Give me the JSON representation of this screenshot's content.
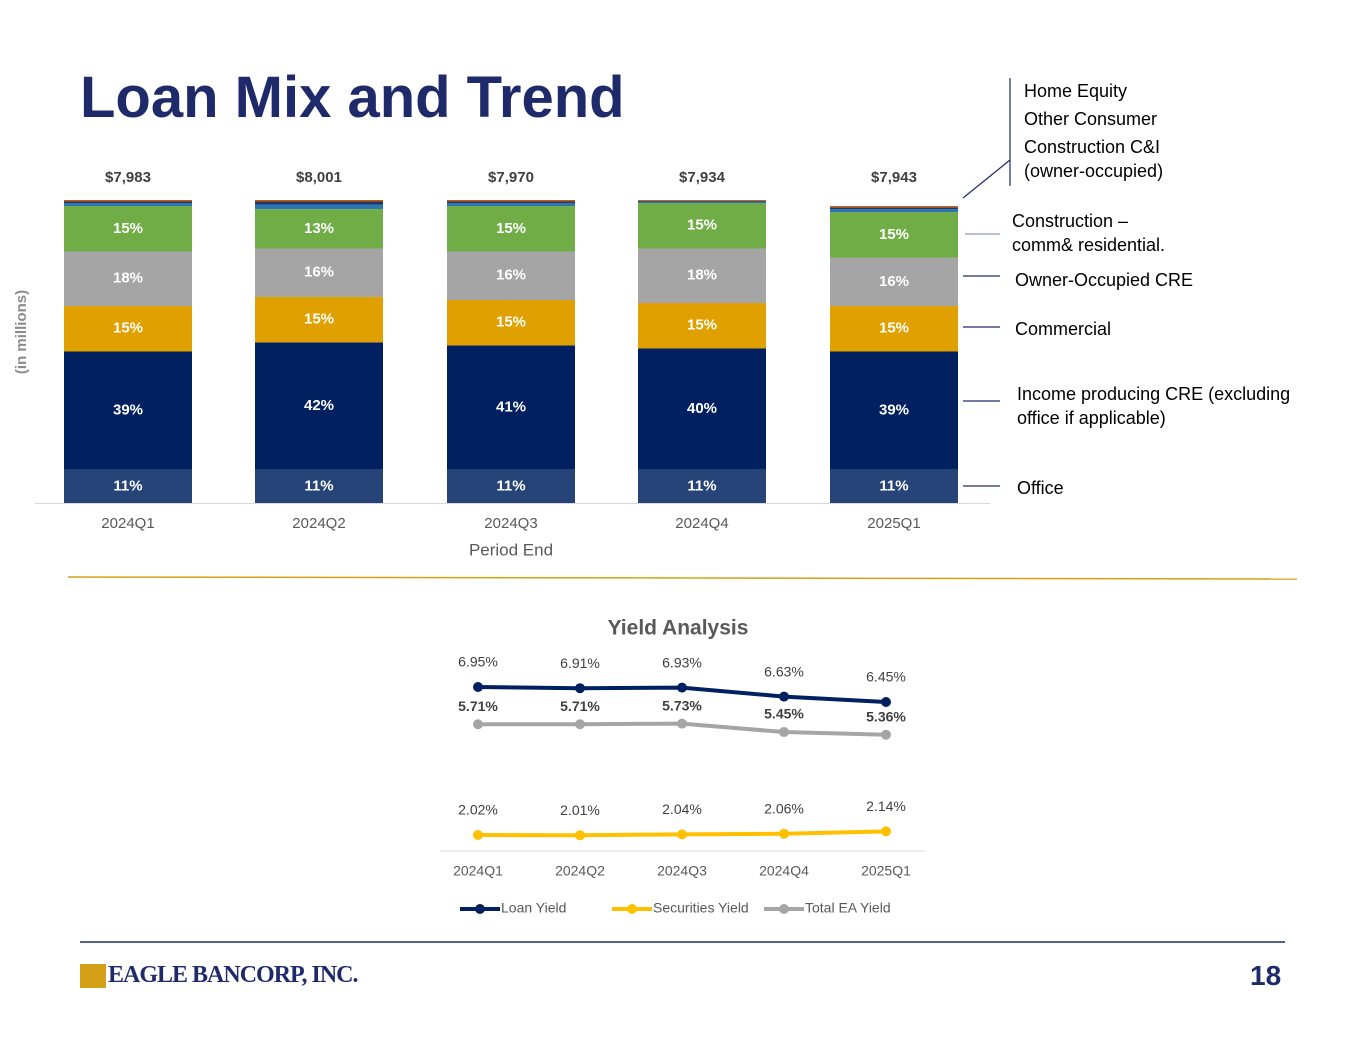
{
  "title": "Loan Mix and Trend",
  "page_number": "18",
  "logo": {
    "text": "EAGLE BANCORP, INC."
  },
  "chart_data": [
    {
      "type": "stacked-bar",
      "y_label": "(in millions)",
      "x_label": "Period End",
      "categories": [
        "2024Q1",
        "2024Q2",
        "2024Q3",
        "2024Q4",
        "2025Q1"
      ],
      "ylim": [
        0,
        100
      ],
      "totals": {
        "values": [
          7983,
          8001,
          7970,
          7934,
          7943
        ],
        "value_labels": [
          "$7,983",
          "$8,001",
          "$7,970",
          "$7,934",
          "$7,943"
        ]
      },
      "series": [
        {
          "name": "Office",
          "color": "#264478",
          "values": [
            11,
            11,
            11,
            11,
            11
          ],
          "value_labels": [
            "11%",
            "11%",
            "11%",
            "11%",
            "11%"
          ]
        },
        {
          "name": "Income producing CRE (excluding office if applicable)",
          "color": "#002060",
          "values": [
            39,
            42,
            41,
            40,
            39
          ],
          "value_labels": [
            "39%",
            "42%",
            "41%",
            "40%",
            "39%"
          ]
        },
        {
          "name": "Commercial",
          "color": "#e0a100",
          "values": [
            15,
            15,
            15,
            15,
            15
          ],
          "value_labels": [
            "15%",
            "15%",
            "15%",
            "15%",
            "15%"
          ]
        },
        {
          "name": "Owner-Occupied CRE",
          "color": "#a5a5a5",
          "values": [
            18,
            16,
            16,
            18,
            16
          ],
          "value_labels": [
            "18%",
            "16%",
            "16%",
            "18%",
            "16%"
          ]
        },
        {
          "name": "Construction – comm& residential.",
          "color": "#70ad47",
          "values": [
            15,
            13,
            15,
            15,
            15
          ],
          "value_labels": [
            "15%",
            "13%",
            "15%",
            "15%",
            "15%"
          ]
        },
        {
          "name": "Construction C&I (owner-occupied)",
          "color": "#2e75b6",
          "values": [
            1,
            1.5,
            1,
            0.4,
            1
          ]
        },
        {
          "name": "Other Consumer",
          "color": "#1f3864",
          "values": [
            0.5,
            1,
            0.5,
            0.3,
            0.5
          ]
        },
        {
          "name": "Home Equity",
          "color": "#c55a11",
          "values": [
            0.5,
            0.5,
            0.5,
            0.3,
            0.5
          ]
        }
      ]
    },
    {
      "type": "line",
      "title": "Yield Analysis",
      "categories": [
        "2024Q1",
        "2024Q2",
        "2024Q3",
        "2024Q4",
        "2025Q1"
      ],
      "ylim": [
        1.5,
        8.0
      ],
      "series": [
        {
          "name": "Loan Yield",
          "color": "#002060",
          "values": [
            6.95,
            6.91,
            6.93,
            6.63,
            6.45
          ],
          "value_labels": [
            "6.95%",
            "6.91%",
            "6.93%",
            "6.63%",
            "6.45%"
          ]
        },
        {
          "name": "Securities Yield",
          "color": "#ffc000",
          "values": [
            2.02,
            2.01,
            2.04,
            2.06,
            2.14
          ],
          "value_labels": [
            "2.02%",
            "2.01%",
            "2.04%",
            "2.06%",
            "2.14%"
          ]
        },
        {
          "name": "Total EA Yield",
          "color": "#a5a5a5",
          "values": [
            5.71,
            5.71,
            5.73,
            5.45,
            5.36
          ],
          "value_labels": [
            "5.71%",
            "5.71%",
            "5.73%",
            "5.45%",
            "5.36%"
          ]
        }
      ]
    }
  ]
}
